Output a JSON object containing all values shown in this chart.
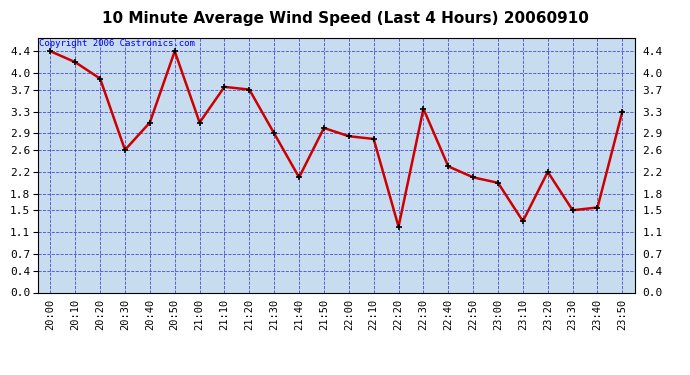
{
  "title": "10 Minute Average Wind Speed (Last 4 Hours) 20060910",
  "copyright_text": "Copyright 2006 Castronics.com",
  "x_labels": [
    "20:00",
    "20:10",
    "20:20",
    "20:30",
    "20:40",
    "20:50",
    "21:00",
    "21:10",
    "21:20",
    "21:30",
    "21:40",
    "21:50",
    "22:00",
    "22:10",
    "22:20",
    "22:30",
    "22:40",
    "22:50",
    "23:00",
    "23:10",
    "23:20",
    "23:30",
    "23:40",
    "23:50"
  ],
  "y_values": [
    4.4,
    4.2,
    3.9,
    2.6,
    3.1,
    4.4,
    3.1,
    3.75,
    3.7,
    2.9,
    2.1,
    3.0,
    2.85,
    2.8,
    1.2,
    3.35,
    2.3,
    2.1,
    2.0,
    1.3,
    2.2,
    1.5,
    1.55,
    3.3
  ],
  "y_ticks": [
    0.0,
    0.4,
    0.7,
    1.1,
    1.5,
    1.8,
    2.2,
    2.6,
    2.9,
    3.3,
    3.7,
    4.0,
    4.4
  ],
  "ylim": [
    0.0,
    4.65
  ],
  "line_color": "#cc0000",
  "marker_color": "#000000",
  "grid_color": "#3333cc",
  "bg_color": "#c8dcf0",
  "outer_bg": "#ffffff",
  "title_fontsize": 11,
  "copyright_fontsize": 6.5,
  "tick_fontsize": 7.5,
  "ytick_fontsize": 8
}
